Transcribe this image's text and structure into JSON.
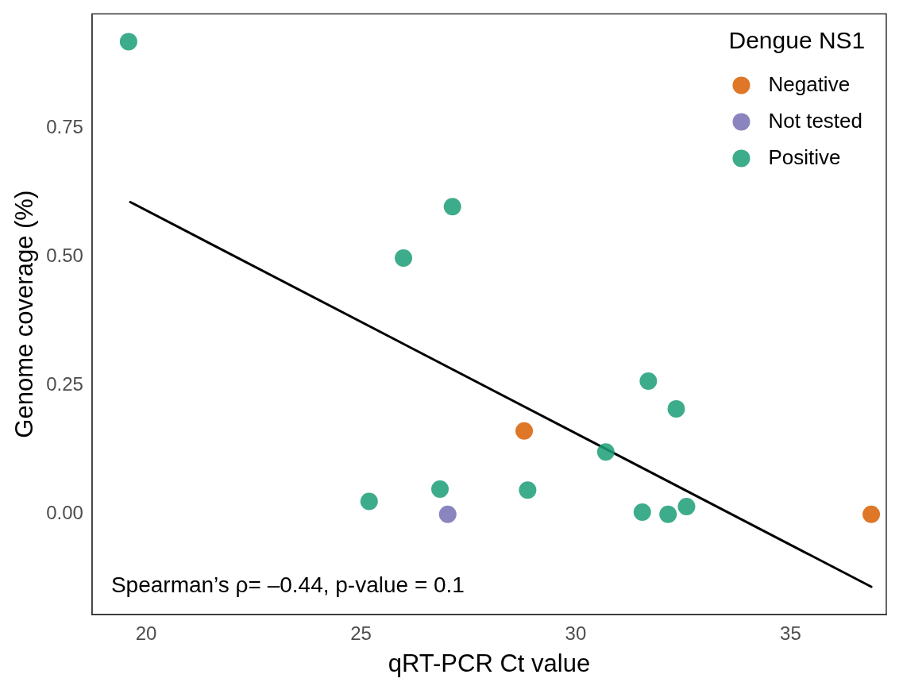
{
  "chart_data": {
    "type": "scatter",
    "xlabel": "qRT-PCR Ct value",
    "ylabel": "Genome coverage (%)",
    "legend_title": "Dengue NS1",
    "legend": "top right",
    "grid": false,
    "marker": "circle",
    "xlim": [
      18.74,
      37.23
    ],
    "xticks": [
      20,
      25,
      30,
      35
    ],
    "ylim": [
      -0.195,
      0.973
    ],
    "yticks": [
      {
        "value": 0,
        "label": "0.00"
      },
      {
        "value": 0.25,
        "label": "0.25"
      },
      {
        "value": 0.5,
        "label": "0.50"
      },
      {
        "value": 0.75,
        "label": "0.75"
      }
    ],
    "series": [
      {
        "name": "Negative",
        "color": "#d95f02",
        "x": [
          28.8,
          36.88
        ],
        "values": [
          0.162,
          0
        ]
      },
      {
        "name": "Not tested",
        "color": "#7570b3",
        "x": [
          27.02
        ],
        "values": [
          0
        ]
      },
      {
        "name": "Positive",
        "color": "#1b9e77",
        "x": [
          19.59,
          27.13,
          25.99,
          31.69,
          32.34,
          30.7,
          25.19,
          26.84,
          28.88,
          31.55,
          32.15,
          32.58
        ],
        "values": [
          0.919,
          0.598,
          0.498,
          0.259,
          0.205,
          0.121,
          0.025,
          0.049,
          0.047,
          0.004,
          0,
          0.015
        ]
      },
      {
        "type": "line",
        "color": "#000000",
        "line_style": "solid",
        "marker": "none",
        "x": [
          19.63,
          36.88
        ],
        "values": [
          0.607,
          -0.141
        ]
      }
    ],
    "annotations": [
      "Spearman’s ρ= –0.44, p-value = 0.1"
    ]
  }
}
